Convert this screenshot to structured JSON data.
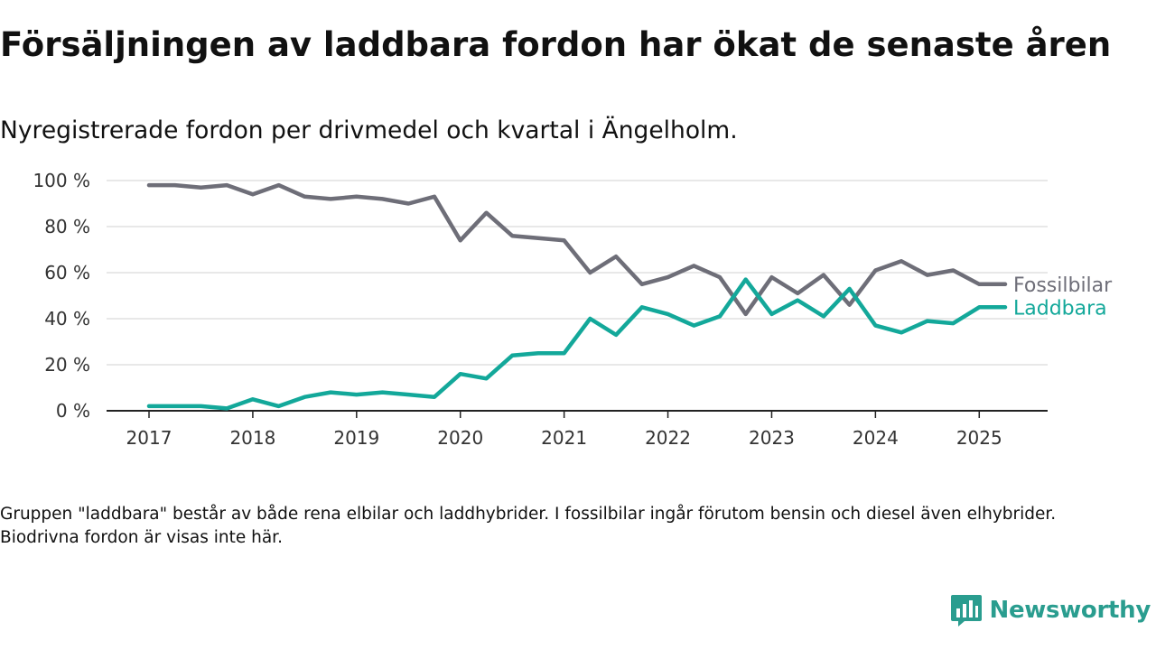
{
  "title": "Försäljningen av laddbara fordon har ökat de senaste åren",
  "subtitle": "Nyregistrerade fordon per drivmedel och kvartal i Ängelholm.",
  "note": "Gruppen \"laddbara\" består av både rena elbilar och laddhybrider. I fossilbilar ingår förutom bensin och diesel även elhybrider. Biodrivna fordon är visas inte här.",
  "brand": {
    "name": "Newsworthy",
    "logo_icon": "newsworthy-bar-chart-logo",
    "color": "#2a9d8f"
  },
  "chart_data": {
    "type": "line",
    "x": [
      "2017-01",
      "2017-04",
      "2017-07",
      "2017-10",
      "2018-01",
      "2018-04",
      "2018-07",
      "2018-10",
      "2019-01",
      "2019-04",
      "2019-07",
      "2019-10",
      "2020-01",
      "2020-04",
      "2020-07",
      "2020-10",
      "2021-01",
      "2021-04",
      "2021-07",
      "2021-10",
      "2022-01",
      "2022-04",
      "2022-07",
      "2022-10",
      "2023-01",
      "2023-04",
      "2023-07",
      "2023-10",
      "2024-01",
      "2024-04",
      "2024-07",
      "2024-10",
      "2025-01",
      "2025-04"
    ],
    "series": [
      {
        "name": "Fossilbilar",
        "color": "#6e6e78",
        "values": [
          98,
          98,
          97,
          98,
          94,
          98,
          93,
          92,
          93,
          92,
          90,
          93,
          74,
          86,
          76,
          75,
          74,
          60,
          67,
          55,
          58,
          63,
          58,
          42,
          58,
          51,
          59,
          46,
          61,
          65,
          59,
          61,
          55,
          55
        ]
      },
      {
        "name": "Laddbara",
        "color": "#13a89a",
        "values": [
          2,
          2,
          2,
          1,
          5,
          2,
          6,
          8,
          7,
          8,
          7,
          6,
          16,
          14,
          24,
          25,
          25,
          40,
          33,
          45,
          42,
          37,
          41,
          57,
          42,
          48,
          41,
          53,
          37,
          34,
          39,
          38,
          45,
          45
        ]
      }
    ],
    "x_ticks": [
      "2017",
      "2018",
      "2019",
      "2020",
      "2021",
      "2022",
      "2023",
      "2024",
      "2025"
    ],
    "y_ticks": [
      "0 %",
      "20 %",
      "40 %",
      "60 %",
      "80 %",
      "100 %"
    ],
    "ylim": [
      0,
      100
    ],
    "grid": "horizontal",
    "legend": "direct labels at line ends"
  }
}
